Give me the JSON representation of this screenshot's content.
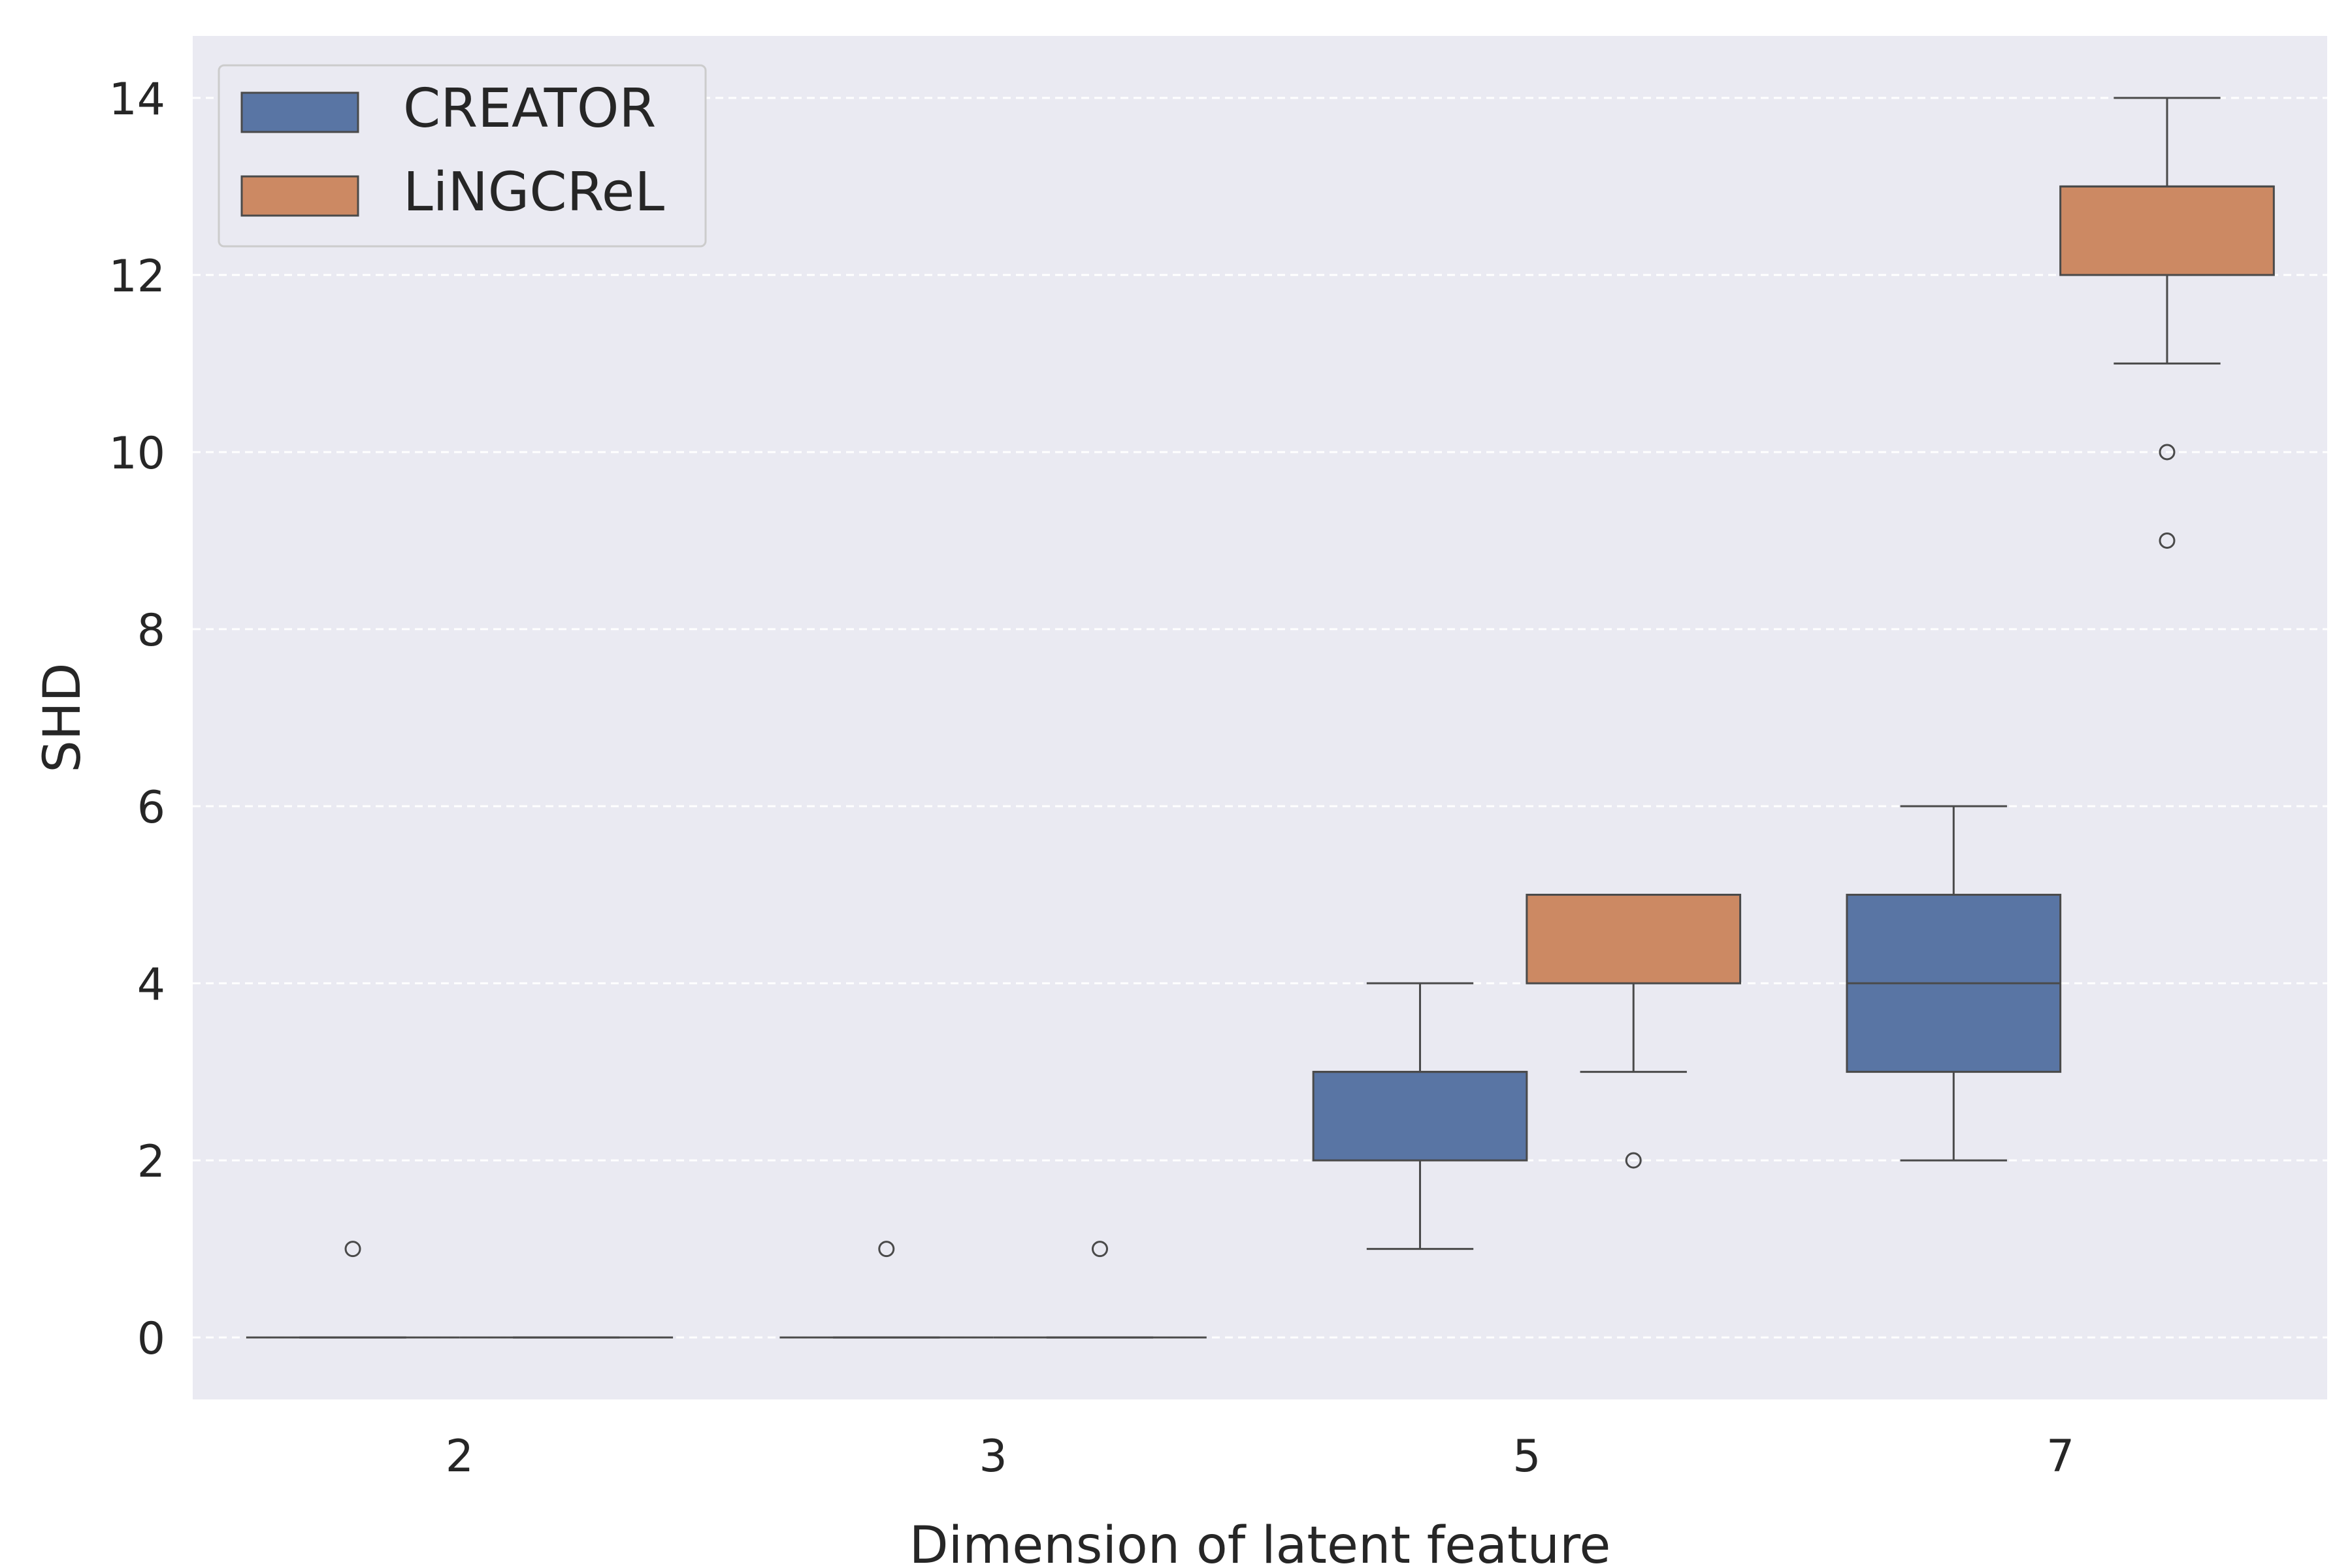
{
  "chart_data": {
    "type": "box",
    "xlabel": "Dimension of latent feature",
    "ylabel": "SHD",
    "categories": [
      "2",
      "3",
      "5",
      "7"
    ],
    "ylim": [
      -0.7,
      14.7
    ],
    "yticks": [
      0,
      2,
      4,
      6,
      8,
      10,
      12,
      14
    ],
    "grid": true,
    "legend_position": "top-left",
    "series": [
      {
        "name": "CREATOR",
        "color": "#5975a4",
        "boxes": [
          {
            "category": "2",
            "whisker_low": 0,
            "q1": 0,
            "median": 0,
            "q3": 0,
            "whisker_high": 0,
            "outliers": [
              1
            ]
          },
          {
            "category": "3",
            "whisker_low": 0,
            "q1": 0,
            "median": 0,
            "q3": 0,
            "whisker_high": 0,
            "outliers": [
              1
            ]
          },
          {
            "category": "5",
            "whisker_low": 1,
            "q1": 2,
            "median": 3,
            "q3": 3,
            "whisker_high": 4,
            "outliers": []
          },
          {
            "category": "7",
            "whisker_low": 2,
            "q1": 3,
            "median": 4,
            "q3": 5,
            "whisker_high": 6,
            "outliers": []
          }
        ]
      },
      {
        "name": "LiNGCReL",
        "color": "#cc8963",
        "boxes": [
          {
            "category": "2",
            "whisker_low": 0,
            "q1": 0,
            "median": 0,
            "q3": 0,
            "whisker_high": 0,
            "outliers": []
          },
          {
            "category": "3",
            "whisker_low": 0,
            "q1": 0,
            "median": 0,
            "q3": 0,
            "whisker_high": 0,
            "outliers": [
              1
            ]
          },
          {
            "category": "5",
            "whisker_low": 3,
            "q1": 4,
            "median": 5,
            "q3": 5,
            "whisker_high": 5,
            "outliers": [
              2
            ]
          },
          {
            "category": "7",
            "whisker_low": 11,
            "q1": 12,
            "median": 13,
            "q3": 13,
            "whisker_high": 14,
            "outliers": [
              10,
              9
            ]
          }
        ]
      }
    ]
  }
}
